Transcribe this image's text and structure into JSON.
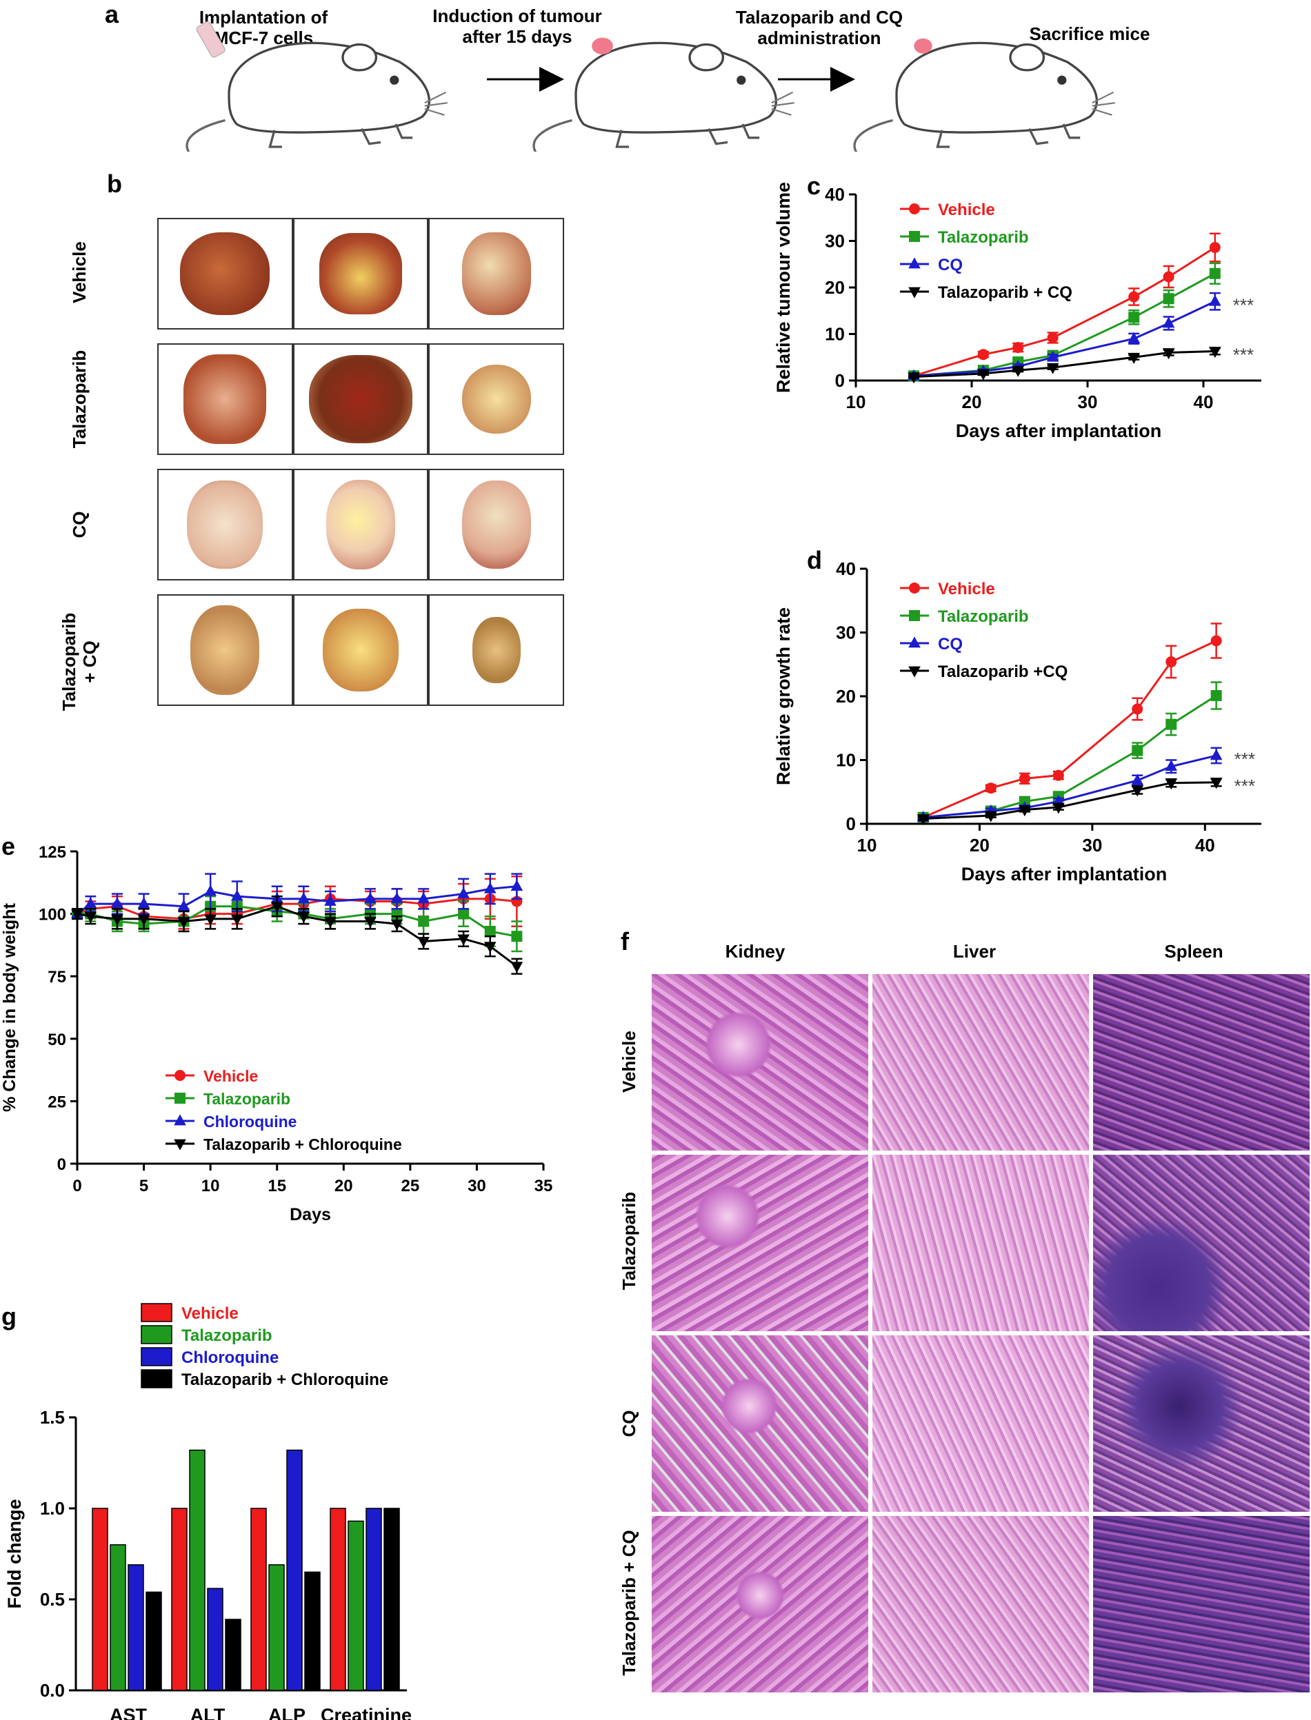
{
  "panel_a": {
    "label": "a",
    "steps": [
      "Implantation of MCF-7 cells",
      "Induction of tumour after 15 days",
      "Talazoparib and CQ administration",
      "Sacrifice mice"
    ]
  },
  "panel_b": {
    "label": "b",
    "rows": [
      "Vehicle",
      "Talazoparib",
      "CQ",
      "Talazoparib + CQ"
    ]
  },
  "panel_f": {
    "label": "f",
    "columns": [
      "Kidney",
      "Liver",
      "Spleen"
    ],
    "rows": [
      "Vehicle",
      "Talazoparib",
      "CQ",
      "Talazoparib + CQ"
    ]
  },
  "colors": {
    "vehicle": "#ee1c1c",
    "talazoparib": "#1f9a1f",
    "cq": "#1c1ccc",
    "combo": "#000000"
  },
  "chart_data": [
    {
      "id": "c",
      "label": "c",
      "type": "line",
      "xlabel": "Days after implantation",
      "ylabel": "Relative tumour volume",
      "xlim": [
        10,
        45
      ],
      "ylim": [
        0,
        40
      ],
      "xticks": [
        10,
        20,
        30,
        40
      ],
      "yticks": [
        0,
        10,
        20,
        30,
        40
      ],
      "x": [
        15,
        21,
        24,
        27,
        34,
        37,
        41
      ],
      "series": [
        {
          "name": "Vehicle",
          "color": "#ee1c1c",
          "marker": "circle",
          "values": [
            1,
            5.6,
            7.1,
            9.2,
            18,
            22.3,
            28.6
          ],
          "errors": [
            0.4,
            0.6,
            0.9,
            1.1,
            1.8,
            2.3,
            3
          ]
        },
        {
          "name": "Talazoparib",
          "color": "#1f9a1f",
          "marker": "square",
          "values": [
            1,
            2.2,
            4,
            5.4,
            13.6,
            17.6,
            23
          ],
          "errors": [
            0.3,
            0.4,
            0.6,
            0.8,
            1.5,
            1.8,
            2.2
          ]
        },
        {
          "name": "CQ",
          "color": "#1c1ccc",
          "marker": "triangle-up",
          "values": [
            1,
            2,
            3,
            5,
            9,
            12.3,
            17
          ],
          "errors": [
            0.3,
            0.4,
            0.5,
            0.6,
            1.1,
            1.4,
            1.8
          ]
        },
        {
          "name": "Talazoparib + CQ",
          "color": "#000000",
          "marker": "triangle-down",
          "values": [
            0.8,
            1.5,
            2.2,
            2.8,
            5,
            6,
            6.3
          ],
          "errors": [
            0.2,
            0.3,
            0.3,
            0.4,
            0.5,
            0.6,
            0.7
          ]
        }
      ],
      "annotations": [
        "***",
        "***"
      ]
    },
    {
      "id": "d",
      "label": "d",
      "type": "line",
      "xlabel": "Days after implantation",
      "ylabel": "Relative growth rate",
      "xlim": [
        10,
        45
      ],
      "ylim": [
        0,
        40
      ],
      "xticks": [
        10,
        20,
        30,
        40
      ],
      "yticks": [
        0,
        10,
        20,
        30,
        40
      ],
      "x": [
        15,
        21,
        24,
        27,
        34,
        37,
        41
      ],
      "series": [
        {
          "name": "Vehicle",
          "color": "#ee1c1c",
          "marker": "circle",
          "values": [
            1,
            5.6,
            7.1,
            7.6,
            18,
            25.4,
            28.7
          ],
          "errors": [
            0.4,
            0.5,
            0.8,
            0.6,
            1.7,
            2.5,
            2.7
          ]
        },
        {
          "name": "Talazoparib",
          "color": "#1f9a1f",
          "marker": "square",
          "values": [
            1,
            2,
            3.5,
            4.3,
            11.5,
            15.6,
            20.1
          ],
          "errors": [
            0.3,
            0.4,
            0.5,
            0.6,
            1.2,
            1.7,
            2.1
          ]
        },
        {
          "name": "CQ",
          "color": "#1c1ccc",
          "marker": "triangle-up",
          "values": [
            1,
            2,
            2.5,
            3.5,
            6.8,
            9,
            10.7
          ],
          "errors": [
            0.3,
            0.4,
            0.4,
            0.5,
            0.8,
            1,
            1.2
          ]
        },
        {
          "name": "Talazoparib +CQ",
          "color": "#000000",
          "marker": "triangle-down",
          "values": [
            0.8,
            1.3,
            2.2,
            2.6,
            5.3,
            6.4,
            6.5
          ],
          "errors": [
            0.2,
            0.3,
            0.3,
            0.4,
            0.6,
            0.6,
            0.6
          ]
        }
      ],
      "annotations": [
        "***",
        "***"
      ]
    },
    {
      "id": "e",
      "label": "e",
      "type": "line",
      "xlabel": "Days",
      "ylabel": "% Change in body weight",
      "xlim": [
        0,
        35
      ],
      "ylim": [
        0,
        125
      ],
      "xticks": [
        0,
        5,
        10,
        15,
        20,
        25,
        30,
        35
      ],
      "yticks": [
        0,
        25,
        50,
        75,
        100,
        125
      ],
      "x": [
        0,
        1,
        3,
        5,
        8,
        10,
        12,
        15,
        17,
        19,
        22,
        24,
        26,
        29,
        31,
        33
      ],
      "series": [
        {
          "name": "Vehicle",
          "color": "#ee1c1c",
          "marker": "circle",
          "values": [
            100,
            102,
            103,
            99,
            98,
            100,
            100,
            104,
            104,
            106,
            105,
            105,
            104,
            106,
            106,
            105
          ],
          "errors": [
            2,
            3,
            4,
            3,
            4,
            4,
            4,
            5,
            5,
            5,
            4,
            5,
            5,
            6,
            8,
            10
          ]
        },
        {
          "name": "Talazoparib",
          "color": "#1f9a1f",
          "marker": "square",
          "values": [
            100,
            100,
            97,
            96,
            97,
            103,
            103,
            101,
            100,
            98,
            100,
            100,
            97,
            100,
            93,
            91
          ],
          "errors": [
            2,
            3,
            4,
            3,
            4,
            4,
            4,
            4,
            4,
            4,
            4,
            4,
            5,
            5,
            6,
            6
          ]
        },
        {
          "name": "Chloroquine",
          "color": "#1c1ccc",
          "marker": "triangle-up",
          "values": [
            100,
            104,
            104,
            104,
            103,
            109,
            107,
            106,
            106,
            105,
            106,
            106,
            106,
            108,
            110,
            111
          ],
          "errors": [
            2,
            3,
            4,
            4,
            5,
            7,
            6,
            5,
            5,
            4,
            4,
            4,
            4,
            6,
            6,
            5
          ]
        },
        {
          "name": "Talazoparib + Chloroquine",
          "color": "#000000",
          "marker": "triangle-down",
          "values": [
            100,
            99,
            98,
            98,
            97,
            98,
            98,
            103,
            99,
            97,
            97,
            96,
            89,
            90,
            87,
            79
          ],
          "errors": [
            2,
            3,
            4,
            4,
            4,
            4,
            4,
            4,
            3,
            3,
            3,
            3,
            3,
            3,
            4,
            3
          ]
        }
      ]
    },
    {
      "id": "g",
      "label": "g",
      "type": "bar",
      "xlabel": "",
      "ylabel": "Fold change",
      "ylim": [
        0,
        1.5
      ],
      "yticks": [
        0.0,
        0.5,
        1.0,
        1.5
      ],
      "categories": [
        "AST",
        "ALT",
        "ALP",
        "Creatinine"
      ],
      "series": [
        {
          "name": "Vehicle",
          "color": "#ee1c1c",
          "values": [
            1.0,
            1.0,
            1.0,
            1.0
          ]
        },
        {
          "name": "Talazoparib",
          "color": "#1f9a1f",
          "values": [
            0.8,
            1.32,
            0.69,
            0.93
          ]
        },
        {
          "name": "Chloroquine",
          "color": "#1c1ccc",
          "values": [
            0.69,
            0.56,
            1.32,
            1.0
          ]
        },
        {
          "name": "Talazoparib + Chloroquine",
          "color": "#000000",
          "values": [
            0.54,
            0.39,
            0.65,
            1.0
          ]
        }
      ]
    }
  ]
}
